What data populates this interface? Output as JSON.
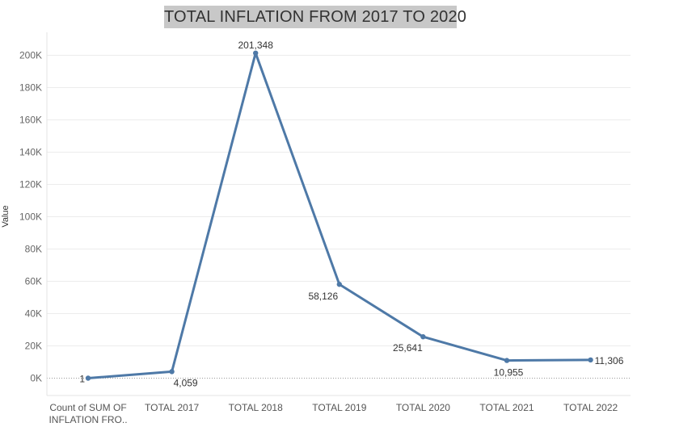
{
  "chart_data": {
    "type": "line",
    "title": "TOTAL INFLATION FROM 2017 TO 2020",
    "xlabel": "",
    "ylabel": "Value",
    "categories": [
      [
        "Count of SUM OF",
        "INFLATION FRO.."
      ],
      [
        "TOTAL 2017"
      ],
      [
        "TOTAL 2018"
      ],
      [
        "TOTAL 2019"
      ],
      [
        "TOTAL 2020"
      ],
      [
        "TOTAL 2021"
      ],
      [
        "TOTAL 2022"
      ]
    ],
    "values": [
      1,
      4059,
      201348,
      58126,
      25641,
      10955,
      11306
    ],
    "data_labels": [
      "1",
      "4,059",
      "201,348",
      "58,126",
      "25,641",
      "10,955",
      "11,306"
    ],
    "yticks": [
      0,
      20000,
      40000,
      60000,
      80000,
      100000,
      120000,
      140000,
      160000,
      180000,
      200000
    ],
    "ytick_labels": [
      "0K",
      "20K",
      "40K",
      "60K",
      "80K",
      "100K",
      "120K",
      "140K",
      "160K",
      "180K",
      "200K"
    ],
    "ylim": [
      -13000,
      212000
    ],
    "grid": true,
    "legend": "none",
    "colors": {
      "line": "#4e79a7",
      "title_bg": "#c8c8c8",
      "grid": "#ececec",
      "zero_line": "#999999"
    }
  }
}
